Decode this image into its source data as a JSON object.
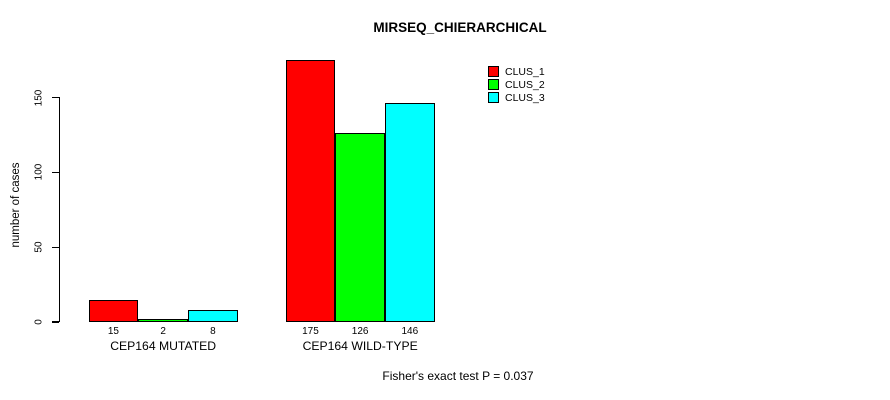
{
  "chart_data": {
    "type": "bar",
    "title": "MIRSEQ_CHIERARCHICAL",
    "xlabel": "",
    "ylabel": "number of cases",
    "categories": [
      "CEP164 MUTATED",
      "CEP164 WILD-TYPE"
    ],
    "series": [
      {
        "name": "CLUS_1",
        "color": "#ff0000",
        "values": [
          15,
          175
        ]
      },
      {
        "name": "CLUS_2",
        "color": "#00ff00",
        "values": [
          2,
          126
        ]
      },
      {
        "name": "CLUS_3",
        "color": "#00ffff",
        "values": [
          8,
          146
        ]
      }
    ],
    "yticks": [
      0,
      50,
      100,
      150
    ],
    "ylim": [
      0,
      185
    ],
    "grid": false,
    "bar_value_labels": [
      [
        15,
        2,
        8
      ],
      [
        175,
        126,
        146
      ]
    ],
    "legend_position": "top-right",
    "annotation": "Fisher's exact test P = 0.037"
  }
}
